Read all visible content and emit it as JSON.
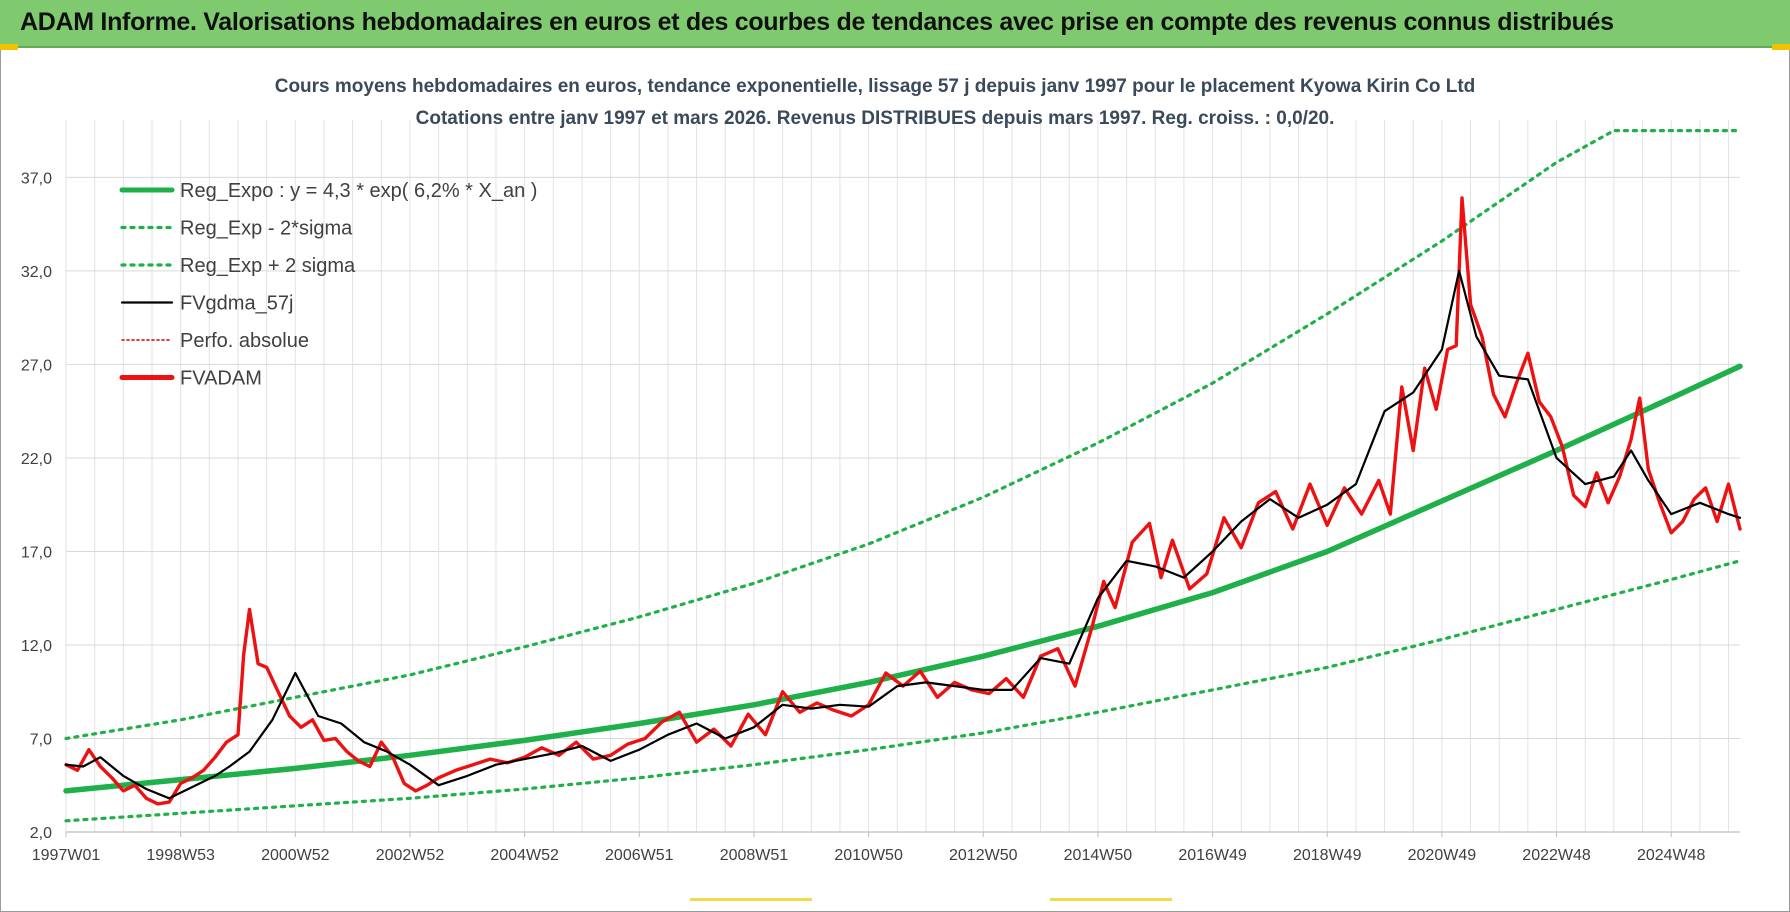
{
  "banner": {
    "title": "ADAM Informe. Valorisations hebdomadaires en euros et des courbes de tendances avec prise en compte des revenus connus distribués"
  },
  "colors": {
    "banner_bg": "#7fca6f",
    "reg_expo": "#1fb04a",
    "sigma": "#1fb04a",
    "fvgdma": "#000000",
    "perfo": "#d00000",
    "fvadam": "#ee1111",
    "title_text": "#3a4a5a"
  },
  "chart_data": {
    "type": "line",
    "title_line1": "Cours moyens hebdomadaires en euros, tendance exponentielle, lissage 57 j depuis janv 1997  pour le placement Kyowa Kirin Co Ltd",
    "title_line2": "Cotations entre janv 1997 et mars 2026. Revenus DISTRIBUES depuis mars 1997.  Reg. croiss. : 0,0/20.",
    "xlabel": "",
    "ylabel": "",
    "xlim": [
      1997.0,
      2026.2
    ],
    "ylim": [
      2.0,
      39.0
    ],
    "y_ticks": [
      "2,0",
      "7,0",
      "12,0",
      "17,0",
      "22,0",
      "27,0",
      "32,0",
      "37,0"
    ],
    "y_tick_values": [
      2,
      7,
      12,
      17,
      22,
      27,
      32,
      37
    ],
    "x_ticks": [
      "1997W01",
      "1998W53",
      "2000W52",
      "2002W52",
      "2004W52",
      "2006W51",
      "2008W51",
      "2010W50",
      "2012W50",
      "2014W50",
      "2016W49",
      "2018W49",
      "2020W49",
      "2022W48",
      "2024W48"
    ],
    "x_tick_values": [
      1997.0,
      1999.0,
      2001.0,
      2003.0,
      2005.0,
      2007.0,
      2009.0,
      2011.0,
      2013.0,
      2015.0,
      2017.0,
      2019.0,
      2021.0,
      2023.0,
      2025.0
    ],
    "grid": true,
    "legend_position": "top-left",
    "legend": [
      {
        "name": "Reg_Expo : y = 4,3 * exp( 6,2% *  X_an )",
        "style": "solid-thick",
        "color": "#1fb04a"
      },
      {
        "name": "Reg_Exp - 2*sigma",
        "style": "dotted",
        "color": "#1fb04a"
      },
      {
        "name": "Reg_Exp + 2 sigma",
        "style": "dotted",
        "color": "#1fb04a"
      },
      {
        "name": "FVgdma_57j",
        "style": "solid",
        "color": "#000000"
      },
      {
        "name": "Perfo. absolue",
        "style": "dotted-thin",
        "color": "#d00000"
      },
      {
        "name": "FVADAM",
        "style": "solid-thick",
        "color": "#ee1111"
      }
    ],
    "series": [
      {
        "name": "Reg_Expo : y = 4,3 * exp( 6,2% *  X_an )",
        "x": [
          1997.0,
          1999.0,
          2001.0,
          2003.0,
          2005.0,
          2007.0,
          2009.0,
          2011.0,
          2013.0,
          2015.0,
          2017.0,
          2019.0,
          2021.0,
          2023.0,
          2025.0,
          2026.2
        ],
        "values": [
          4.2,
          4.8,
          5.4,
          6.1,
          6.9,
          7.8,
          8.8,
          10.0,
          11.4,
          13.0,
          14.8,
          17.0,
          19.7,
          22.4,
          25.2,
          26.9
        ]
      },
      {
        "name": "Reg_Exp - 2*sigma",
        "x": [
          1997.0,
          1999.0,
          2001.0,
          2003.0,
          2005.0,
          2007.0,
          2009.0,
          2011.0,
          2013.0,
          2015.0,
          2017.0,
          2019.0,
          2021.0,
          2023.0,
          2025.0,
          2026.2
        ],
        "values": [
          2.6,
          3.0,
          3.4,
          3.8,
          4.3,
          4.9,
          5.6,
          6.4,
          7.3,
          8.4,
          9.6,
          10.8,
          12.3,
          13.9,
          15.5,
          16.5
        ]
      },
      {
        "name": "Reg_Exp + 2 sigma",
        "x": [
          1997.0,
          1999.0,
          2001.0,
          2003.0,
          2005.0,
          2007.0,
          2009.0,
          2011.0,
          2013.0,
          2015.0,
          2017.0,
          2019.0,
          2021.0,
          2023.0,
          2024.0,
          2026.2
        ],
        "values": [
          7.0,
          8.0,
          9.2,
          10.4,
          11.9,
          13.5,
          15.3,
          17.4,
          19.9,
          22.8,
          26.0,
          29.7,
          33.6,
          37.8,
          39.5,
          39.5
        ]
      },
      {
        "name": "FVgdma_57j",
        "x": [
          1997.0,
          1997.3,
          1997.6,
          1998.0,
          1998.4,
          1998.8,
          1999.2,
          1999.6,
          1999.85,
          2000.2,
          2000.6,
          2001.0,
          2001.4,
          2001.8,
          2002.2,
          2002.6,
          2003.0,
          2003.5,
          2004.0,
          2004.5,
          2005.0,
          2005.5,
          2006.0,
          2006.5,
          2007.0,
          2007.5,
          2008.0,
          2008.5,
          2009.0,
          2009.5,
          2010.0,
          2010.5,
          2011.0,
          2011.5,
          2012.0,
          2012.5,
          2013.0,
          2013.5,
          2014.0,
          2014.5,
          2015.0,
          2015.5,
          2016.0,
          2016.5,
          2017.0,
          2017.5,
          2018.0,
          2018.5,
          2019.0,
          2019.5,
          2020.0,
          2020.5,
          2021.0,
          2021.3,
          2021.6,
          2022.0,
          2022.5,
          2023.0,
          2023.5,
          2024.0,
          2024.3,
          2024.6,
          2025.0,
          2025.5,
          2026.0,
          2026.2
        ],
        "values": [
          5.6,
          5.5,
          6.0,
          5.0,
          4.3,
          3.8,
          4.4,
          5.0,
          5.5,
          6.3,
          8.0,
          10.5,
          8.2,
          7.8,
          6.8,
          6.3,
          5.6,
          4.5,
          5.0,
          5.6,
          5.9,
          6.2,
          6.6,
          5.8,
          6.4,
          7.2,
          7.8,
          7.0,
          7.6,
          8.8,
          8.6,
          8.8,
          8.7,
          9.8,
          10.0,
          9.8,
          9.6,
          9.6,
          11.3,
          11.0,
          14.5,
          16.5,
          16.2,
          15.6,
          17.0,
          18.6,
          19.8,
          18.8,
          19.5,
          20.6,
          24.5,
          25.5,
          27.8,
          32.0,
          28.5,
          26.4,
          26.2,
          22.0,
          20.6,
          21.0,
          22.4,
          20.8,
          19.0,
          19.6,
          19.0,
          18.8
        ]
      },
      {
        "name": "FVADAM",
        "x": [
          1997.0,
          1997.2,
          1997.4,
          1997.6,
          1997.8,
          1998.0,
          1998.2,
          1998.4,
          1998.6,
          1998.8,
          1999.0,
          1999.2,
          1999.4,
          1999.6,
          1999.8,
          2000.0,
          2000.1,
          2000.2,
          2000.35,
          2000.5,
          2000.7,
          2000.9,
          2001.1,
          2001.3,
          2001.5,
          2001.7,
          2001.9,
          2002.1,
          2002.3,
          2002.5,
          2002.7,
          2002.9,
          2003.1,
          2003.3,
          2003.5,
          2003.8,
          2004.1,
          2004.4,
          2004.7,
          2005.0,
          2005.3,
          2005.6,
          2005.9,
          2006.2,
          2006.5,
          2006.8,
          2007.1,
          2007.4,
          2007.7,
          2008.0,
          2008.3,
          2008.6,
          2008.9,
          2009.2,
          2009.5,
          2009.8,
          2010.1,
          2010.4,
          2010.7,
          2011.0,
          2011.3,
          2011.6,
          2011.9,
          2012.2,
          2012.5,
          2012.8,
          2013.1,
          2013.4,
          2013.7,
          2014.0,
          2014.3,
          2014.6,
          2014.9,
          2015.1,
          2015.3,
          2015.6,
          2015.9,
          2016.1,
          2016.3,
          2016.6,
          2016.9,
          2017.2,
          2017.5,
          2017.8,
          2018.1,
          2018.4,
          2018.7,
          2019.0,
          2019.3,
          2019.6,
          2019.9,
          2020.1,
          2020.3,
          2020.5,
          2020.7,
          2020.9,
          2021.1,
          2021.25,
          2021.35,
          2021.5,
          2021.7,
          2021.9,
          2022.1,
          2022.3,
          2022.5,
          2022.7,
          2022.9,
          2023.1,
          2023.3,
          2023.5,
          2023.7,
          2023.9,
          2024.1,
          2024.3,
          2024.45,
          2024.6,
          2024.8,
          2025.0,
          2025.2,
          2025.4,
          2025.6,
          2025.8,
          2026.0,
          2026.2
        ],
        "values": [
          5.6,
          5.3,
          6.4,
          5.5,
          4.9,
          4.2,
          4.5,
          3.8,
          3.5,
          3.6,
          4.6,
          4.9,
          5.3,
          6.0,
          6.8,
          7.2,
          11.5,
          13.9,
          11.0,
          10.8,
          9.5,
          8.2,
          7.6,
          8.0,
          6.9,
          7.0,
          6.3,
          5.8,
          5.5,
          6.8,
          6.0,
          4.6,
          4.2,
          4.5,
          4.9,
          5.3,
          5.6,
          5.9,
          5.7,
          6.0,
          6.5,
          6.1,
          6.8,
          5.9,
          6.1,
          6.7,
          7.0,
          7.9,
          8.4,
          6.8,
          7.5,
          6.6,
          8.3,
          7.2,
          9.5,
          8.4,
          8.9,
          8.5,
          8.2,
          8.8,
          10.5,
          9.8,
          10.6,
          9.2,
          10.0,
          9.6,
          9.4,
          10.2,
          9.2,
          11.4,
          11.8,
          9.8,
          13.0,
          15.4,
          14.0,
          17.5,
          18.5,
          15.6,
          17.6,
          15.0,
          15.8,
          18.8,
          17.2,
          19.6,
          20.2,
          18.2,
          20.6,
          18.4,
          20.4,
          19.0,
          20.8,
          19.0,
          25.8,
          22.4,
          26.8,
          24.6,
          27.8,
          28.0,
          35.9,
          30.2,
          28.5,
          25.4,
          24.2,
          26.0,
          27.6,
          25.0,
          24.2,
          22.6,
          20.0,
          19.4,
          21.2,
          19.6,
          21.0,
          23.0,
          25.2,
          21.4,
          19.6,
          18.0,
          18.6,
          19.8,
          20.4,
          18.6,
          20.6,
          18.2
        ]
      }
    ]
  }
}
